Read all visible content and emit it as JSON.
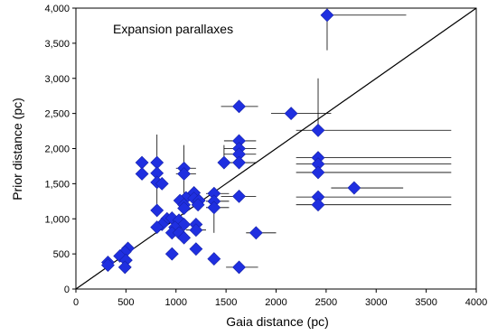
{
  "chart_data": {
    "type": "scatter",
    "annotation": "Expansion parallaxes",
    "xlabel": "Gaia distance (pc)",
    "ylabel": "Prior distance (pc)",
    "xlim": [
      0,
      4000
    ],
    "ylim": [
      0,
      4000
    ],
    "x_ticks": [
      "0",
      "500",
      "1000",
      "1500",
      "2000",
      "2500",
      "3000",
      "3500",
      "4000"
    ],
    "y_ticks": [
      "0",
      "500",
      "1,000",
      "1,500",
      "2,000",
      "2,500",
      "3,000",
      "3,500",
      "4,000"
    ],
    "reference_line": "y = x",
    "grid": false,
    "legend": "none",
    "marker_color": "#1F2FE0",
    "marker_shape": "diamond",
    "points": [
      {
        "x": 2510,
        "y": 3900,
        "xerr": [
          2510,
          3300
        ],
        "yerr": [
          3400,
          3900
        ]
      },
      {
        "x": 1630,
        "y": 2600,
        "xerr": [
          1450,
          1820
        ]
      },
      {
        "x": 2150,
        "y": 2500,
        "xerr": [
          1950,
          2550
        ]
      },
      {
        "x": 2420,
        "y": 2260,
        "xerr": [
          2200,
          3750
        ],
        "yerr": [
          2260,
          3000
        ]
      },
      {
        "x": 1630,
        "y": 2110,
        "xerr": [
          1480,
          1800
        ]
      },
      {
        "x": 1630,
        "y": 2000,
        "xerr": [
          1480,
          1800
        ]
      },
      {
        "x": 1630,
        "y": 1920,
        "xerr": [
          1480,
          1800
        ]
      },
      {
        "x": 2420,
        "y": 1870,
        "xerr": [
          2200,
          3750
        ]
      },
      {
        "x": 1630,
        "y": 1800,
        "xerr": [
          1450,
          1800
        ]
      },
      {
        "x": 1480,
        "y": 1800,
        "yerr": [
          1800,
          2050
        ]
      },
      {
        "x": 2420,
        "y": 1780,
        "xerr": [
          2200,
          3750
        ]
      },
      {
        "x": 660,
        "y": 1800
      },
      {
        "x": 810,
        "y": 1800
      },
      {
        "x": 1080,
        "y": 1720,
        "xerr": [
          1000,
          1200
        ]
      },
      {
        "x": 660,
        "y": 1640
      },
      {
        "x": 810,
        "y": 1650
      },
      {
        "x": 1080,
        "y": 1640,
        "xerr": [
          1000,
          1200
        ]
      },
      {
        "x": 2420,
        "y": 1660,
        "xerr": [
          2200,
          3750
        ]
      },
      {
        "x": 810,
        "y": 1520
      },
      {
        "x": 860,
        "y": 1500
      },
      {
        "x": 2780,
        "y": 1440,
        "xerr": [
          2550,
          3270
        ]
      },
      {
        "x": 1180,
        "y": 1370
      },
      {
        "x": 1380,
        "y": 1360,
        "xerr": [
          1300,
          1530
        ]
      },
      {
        "x": 1100,
        "y": 1300,
        "xerr": [
          1020,
          1250
        ]
      },
      {
        "x": 1630,
        "y": 1320,
        "xerr": [
          1450,
          1800
        ]
      },
      {
        "x": 2420,
        "y": 1310,
        "xerr": [
          2200,
          3750
        ]
      },
      {
        "x": 1040,
        "y": 1260
      },
      {
        "x": 1180,
        "y": 1290
      },
      {
        "x": 1230,
        "y": 1260
      },
      {
        "x": 1380,
        "y": 1250,
        "xerr": [
          1300,
          1530
        ]
      },
      {
        "x": 1080,
        "y": 1200
      },
      {
        "x": 1220,
        "y": 1200
      },
      {
        "x": 2420,
        "y": 1200,
        "xerr": [
          2200,
          3750
        ]
      },
      {
        "x": 1380,
        "y": 1160,
        "xerr": [
          1300,
          1530
        ],
        "yerr": [
          800,
          1160
        ]
      },
      {
        "x": 810,
        "y": 1120,
        "yerr": [
          1120,
          2200
        ]
      },
      {
        "x": 1080,
        "y": 1150,
        "yerr": [
          1150,
          2050
        ]
      },
      {
        "x": 910,
        "y": 1000,
        "xerr": [
          870,
          1030
        ]
      },
      {
        "x": 960,
        "y": 1010
      },
      {
        "x": 1030,
        "y": 980
      },
      {
        "x": 860,
        "y": 920
      },
      {
        "x": 1080,
        "y": 920
      },
      {
        "x": 1200,
        "y": 920
      },
      {
        "x": 810,
        "y": 880
      },
      {
        "x": 990,
        "y": 880
      },
      {
        "x": 960,
        "y": 800
      },
      {
        "x": 1030,
        "y": 800
      },
      {
        "x": 1200,
        "y": 840,
        "xerr": [
          1100,
          1300
        ]
      },
      {
        "x": 1800,
        "y": 800,
        "xerr": [
          1700,
          2000
        ]
      },
      {
        "x": 1080,
        "y": 730
      },
      {
        "x": 520,
        "y": 580
      },
      {
        "x": 1200,
        "y": 570
      },
      {
        "x": 490,
        "y": 530
      },
      {
        "x": 440,
        "y": 470
      },
      {
        "x": 960,
        "y": 500
      },
      {
        "x": 500,
        "y": 410
      },
      {
        "x": 1380,
        "y": 430
      },
      {
        "x": 320,
        "y": 380
      },
      {
        "x": 320,
        "y": 340
      },
      {
        "x": 490,
        "y": 310
      },
      {
        "x": 1630,
        "y": 310,
        "xerr": [
          1500,
          1820
        ]
      }
    ]
  }
}
